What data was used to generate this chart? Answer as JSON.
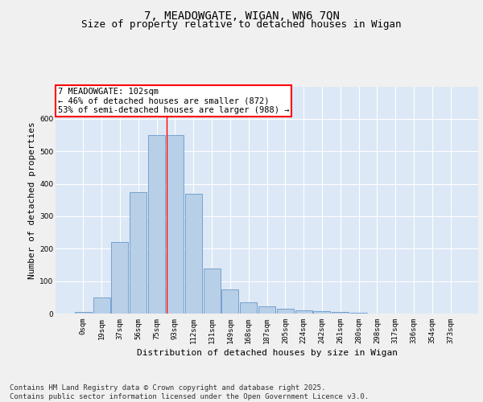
{
  "title_line1": "7, MEADOWGATE, WIGAN, WN6 7QN",
  "title_line2": "Size of property relative to detached houses in Wigan",
  "xlabel": "Distribution of detached houses by size in Wigan",
  "ylabel": "Number of detached properties",
  "bar_labels": [
    "0sqm",
    "19sqm",
    "37sqm",
    "56sqm",
    "75sqm",
    "93sqm",
    "112sqm",
    "131sqm",
    "149sqm",
    "168sqm",
    "187sqm",
    "205sqm",
    "224sqm",
    "242sqm",
    "261sqm",
    "280sqm",
    "298sqm",
    "317sqm",
    "336sqm",
    "354sqm",
    "373sqm"
  ],
  "bar_values": [
    5,
    50,
    220,
    375,
    550,
    550,
    370,
    138,
    75,
    35,
    22,
    15,
    10,
    8,
    5,
    2,
    0,
    0,
    0,
    0,
    0
  ],
  "bar_color": "#b8cfe8",
  "bar_edge_color": "#6699cc",
  "vline_x": 4.55,
  "annotation_text": "7 MEADOWGATE: 102sqm\n← 46% of detached houses are smaller (872)\n53% of semi-detached houses are larger (988) →",
  "annotation_box_color": "#ffffff",
  "annotation_box_edgecolor": "red",
  "vline_color": "red",
  "ylim": [
    0,
    700
  ],
  "yticks": [
    0,
    100,
    200,
    300,
    400,
    500,
    600
  ],
  "background_color": "#dce8f5",
  "grid_color": "#ffffff",
  "footer_text": "Contains HM Land Registry data © Crown copyright and database right 2025.\nContains public sector information licensed under the Open Government Licence v3.0.",
  "title_fontsize": 10,
  "subtitle_fontsize": 9,
  "axis_label_fontsize": 8,
  "tick_fontsize": 6.5,
  "annotation_fontsize": 7.5,
  "footer_fontsize": 6.5
}
